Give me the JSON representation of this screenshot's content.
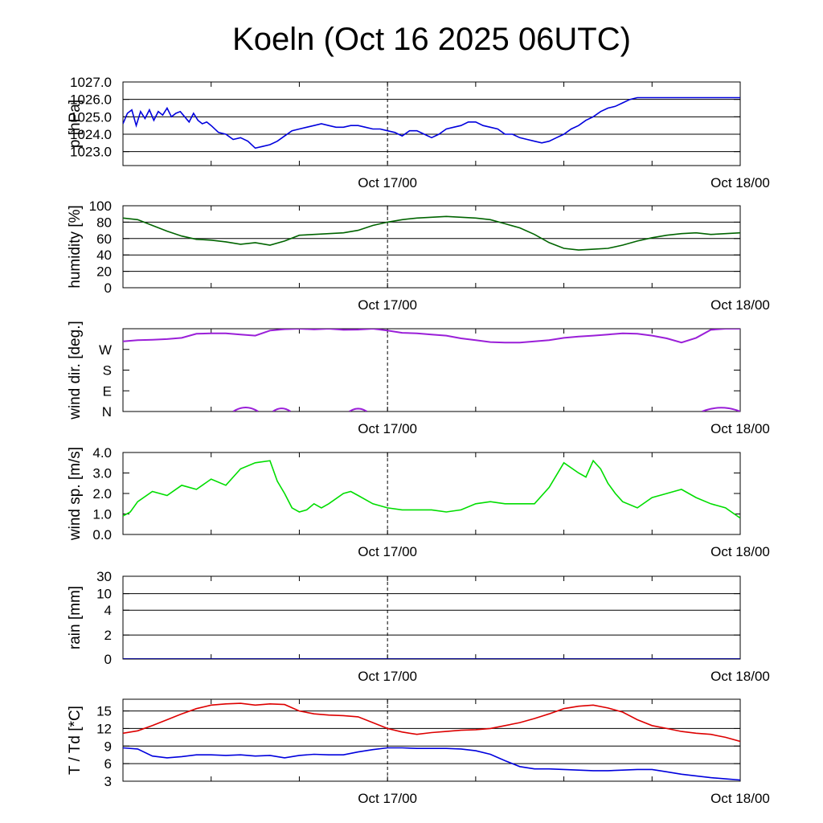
{
  "title": "Koeln (Oct 16 2025 06UTC)",
  "x_tick_labels": [
    "Oct 17/00",
    "Oct 18/00"
  ],
  "chart_data": [
    {
      "id": "pressure",
      "type": "line",
      "ylabel": "p [hPa]",
      "ylim": [
        1022.2,
        1027.0
      ],
      "yticks": [
        1023.0,
        1024.0,
        1025.0,
        1026.0,
        1027.0
      ],
      "ytick_labels": [
        "1023.0",
        "1024.0",
        "1025.0",
        "1026.0",
        "1027.0"
      ],
      "grid": true,
      "xlim_hours": [
        0,
        42
      ],
      "series": [
        {
          "name": "p",
          "color": "#0000dd",
          "x": [
            0,
            0.3,
            0.6,
            0.9,
            1.2,
            1.5,
            1.8,
            2.1,
            2.4,
            2.7,
            3.0,
            3.3,
            3.6,
            3.9,
            4.2,
            4.5,
            4.8,
            5.1,
            5.4,
            5.7,
            6.0,
            6.5,
            7.0,
            7.5,
            8.0,
            8.5,
            9.0,
            9.5,
            10.0,
            10.5,
            11.0,
            11.5,
            12.0,
            12.5,
            13.0,
            13.5,
            14.0,
            14.5,
            15.0,
            15.5,
            16.0,
            16.5,
            17.0,
            17.5,
            18.0,
            18.5,
            19.0,
            19.5,
            20.0,
            20.5,
            21.0,
            21.5,
            22.0,
            22.5,
            23.0,
            23.5,
            24.0,
            24.5,
            25.0,
            25.5,
            26.0,
            26.5,
            27.0,
            27.5,
            28.0,
            28.5,
            29.0,
            29.5,
            30.0,
            30.5,
            31.0,
            31.5,
            32.0,
            32.5,
            33.0,
            33.5,
            34.0,
            34.5,
            35.0,
            35.5,
            36.0,
            36.5,
            37.0,
            37.5,
            38.0,
            38.5,
            39.0,
            39.5,
            40.0,
            40.5,
            41.0,
            41.5,
            42.0
          ],
          "y": [
            1024.6,
            1025.2,
            1025.4,
            1024.5,
            1025.3,
            1024.9,
            1025.4,
            1024.8,
            1025.3,
            1025.1,
            1025.5,
            1025.0,
            1025.2,
            1025.3,
            1025.0,
            1024.7,
            1025.2,
            1024.8,
            1024.6,
            1024.7,
            1024.5,
            1024.1,
            1024.0,
            1023.7,
            1023.8,
            1023.6,
            1023.2,
            1023.3,
            1023.4,
            1023.6,
            1023.9,
            1024.2,
            1024.3,
            1024.4,
            1024.5,
            1024.6,
            1024.5,
            1024.4,
            1024.4,
            1024.5,
            1024.5,
            1024.4,
            1024.3,
            1024.3,
            1024.2,
            1024.1,
            1023.9,
            1024.2,
            1024.2,
            1024.0,
            1023.8,
            1024.0,
            1024.3,
            1024.4,
            1024.5,
            1024.7,
            1024.7,
            1024.5,
            1024.4,
            1024.3,
            1024.0,
            1024.0,
            1023.8,
            1023.7,
            1023.6,
            1023.5,
            1023.6,
            1023.8,
            1024.0,
            1024.3,
            1024.5,
            1024.8,
            1025.0,
            1025.3,
            1025.5,
            1025.6,
            1025.8,
            1026.0,
            1026.1,
            1026.1,
            1026.1,
            1026.1,
            1026.1,
            1026.1,
            1026.1,
            1026.1,
            1026.1,
            1026.1,
            1026.1,
            1026.1,
            1026.1,
            1026.1,
            1026.1
          ]
        }
      ]
    },
    {
      "id": "humidity",
      "type": "line",
      "ylabel": "humidity [%]",
      "ylim": [
        0,
        100
      ],
      "yticks": [
        0,
        20,
        40,
        60,
        80,
        100
      ],
      "ytick_labels": [
        "0",
        "20",
        "40",
        "60",
        "80",
        "100"
      ],
      "grid": true,
      "xlim_hours": [
        0,
        42
      ],
      "series": [
        {
          "name": "humidity",
          "color": "#006400",
          "x": [
            0,
            1,
            2,
            3,
            4,
            5,
            6,
            7,
            8,
            9,
            10,
            11,
            12,
            13,
            14,
            15,
            16,
            17,
            18,
            19,
            20,
            21,
            22,
            23,
            24,
            25,
            26,
            27,
            28,
            29,
            30,
            31,
            32,
            33,
            34,
            35,
            36,
            37,
            38,
            39,
            40,
            41,
            42
          ],
          "y": [
            85,
            83,
            76,
            69,
            63,
            59,
            58,
            56,
            53,
            55,
            52,
            57,
            64,
            65,
            66,
            67,
            70,
            76,
            80,
            83,
            85,
            86,
            87,
            86,
            85,
            83,
            78,
            73,
            65,
            55,
            48,
            46,
            47,
            48,
            52,
            57,
            61,
            64,
            66,
            67,
            65,
            66,
            67
          ]
        }
      ]
    },
    {
      "id": "wind_dir",
      "type": "line",
      "ylabel": "wind dir. [deg.]",
      "ylim": [
        0,
        360
      ],
      "yticks": [
        0,
        90,
        180,
        270
      ],
      "ytick_labels": [
        "N",
        "E",
        "S",
        "W"
      ],
      "grid": false,
      "xlim_hours": [
        0,
        42
      ],
      "series": [
        {
          "name": "wind direction",
          "color": "#9a1fd8",
          "x": [
            0,
            1,
            2,
            3,
            4,
            5,
            6,
            7,
            8,
            9,
            10,
            11,
            12,
            13,
            14,
            15,
            16,
            17,
            18,
            19,
            20,
            21,
            22,
            23,
            24,
            25,
            26,
            27,
            28,
            29,
            30,
            31,
            32,
            33,
            34,
            35,
            36,
            37,
            38,
            39,
            40,
            41,
            42
          ],
          "y": [
            305,
            310,
            312,
            315,
            320,
            338,
            340,
            340,
            335,
            330,
            352,
            358,
            360,
            357,
            360,
            355,
            356,
            360,
            352,
            342,
            340,
            335,
            330,
            318,
            310,
            302,
            300,
            300,
            305,
            310,
            320,
            326,
            330,
            335,
            340,
            338,
            330,
            318,
            300,
            320,
            355,
            360,
            360
          ]
        }
      ]
    },
    {
      "id": "wind_speed",
      "type": "line",
      "ylabel": "wind sp. [m/s]",
      "ylim": [
        0,
        4.0
      ],
      "yticks": [
        0,
        1,
        2,
        3,
        4
      ],
      "ytick_labels": [
        "0.0",
        "1.0",
        "2.0",
        "3.0",
        "4.0"
      ],
      "grid": false,
      "xlim_hours": [
        0,
        42
      ],
      "series": [
        {
          "name": "wind speed",
          "color": "#00dd00",
          "x": [
            0,
            0.5,
            1,
            2,
            3,
            4,
            5,
            6,
            7,
            8,
            9,
            10,
            10.5,
            11,
            11.5,
            12,
            12.5,
            13,
            13.5,
            14,
            15,
            15.5,
            16,
            17,
            18,
            19,
            20,
            21,
            22,
            23,
            24,
            25,
            26,
            27,
            28,
            29,
            30,
            31,
            31.5,
            32,
            32.5,
            33,
            33.5,
            34,
            35,
            36,
            37,
            38,
            39,
            40,
            41,
            42
          ],
          "y": [
            0.9,
            1.1,
            1.6,
            2.1,
            1.9,
            2.4,
            2.2,
            2.7,
            2.4,
            3.2,
            3.5,
            3.6,
            2.6,
            2.0,
            1.3,
            1.1,
            1.2,
            1.5,
            1.3,
            1.5,
            2.0,
            2.1,
            1.9,
            1.5,
            1.3,
            1.2,
            1.2,
            1.2,
            1.1,
            1.2,
            1.5,
            1.6,
            1.5,
            1.5,
            1.5,
            2.3,
            3.5,
            3.0,
            2.8,
            3.6,
            3.2,
            2.5,
            2.0,
            1.6,
            1.3,
            1.8,
            2.0,
            2.2,
            1.8,
            1.5,
            1.3,
            0.8
          ]
        }
      ]
    },
    {
      "id": "rain",
      "type": "line",
      "ylabel": "rain [mm]",
      "ylim": [
        0,
        30
      ],
      "yticks": [
        0,
        2,
        4,
        10,
        30
      ],
      "ytick_labels": [
        "0",
        "2",
        "4",
        "10",
        "30"
      ],
      "grid": true,
      "xlim_hours": [
        0,
        42
      ],
      "series": [
        {
          "name": "rain",
          "color": "#00008b",
          "x": [
            0,
            42
          ],
          "y": [
            0,
            0
          ]
        }
      ]
    },
    {
      "id": "temperature",
      "type": "line",
      "ylabel": "T / Td [*C]",
      "ylim": [
        3,
        17
      ],
      "yticks": [
        3,
        6,
        9,
        12,
        15
      ],
      "ytick_labels": [
        "3",
        "6",
        "9",
        "12",
        "15"
      ],
      "grid": true,
      "xlim_hours": [
        0,
        42
      ],
      "series": [
        {
          "name": "T",
          "color": "#dd0000",
          "x": [
            0,
            1,
            2,
            3,
            4,
            5,
            6,
            7,
            8,
            9,
            10,
            11,
            12,
            13,
            14,
            15,
            16,
            17,
            18,
            19,
            20,
            21,
            22,
            23,
            24,
            25,
            26,
            27,
            28,
            29,
            30,
            31,
            32,
            33,
            34,
            35,
            36,
            37,
            38,
            39,
            40,
            41,
            42
          ],
          "y": [
            11.2,
            11.6,
            12.5,
            13.5,
            14.5,
            15.4,
            16.0,
            16.2,
            16.3,
            16.0,
            16.2,
            16.1,
            15.0,
            14.5,
            14.3,
            14.2,
            14.0,
            13.0,
            12.0,
            11.4,
            11.0,
            11.3,
            11.5,
            11.7,
            11.8,
            12.0,
            12.5,
            13.0,
            13.7,
            14.5,
            15.4,
            15.8,
            16.0,
            15.5,
            14.8,
            13.5,
            12.5,
            12.0,
            11.5,
            11.2,
            11.0,
            10.5,
            9.8
          ]
        },
        {
          "name": "Td",
          "color": "#0000dd",
          "x": [
            0,
            1,
            2,
            3,
            4,
            5,
            6,
            7,
            8,
            9,
            10,
            11,
            12,
            13,
            14,
            15,
            16,
            17,
            18,
            19,
            20,
            21,
            22,
            23,
            24,
            25,
            26,
            27,
            28,
            29,
            30,
            31,
            32,
            33,
            34,
            35,
            36,
            37,
            38,
            39,
            40,
            41,
            42
          ],
          "y": [
            8.7,
            8.5,
            7.3,
            7.0,
            7.2,
            7.5,
            7.5,
            7.4,
            7.5,
            7.3,
            7.4,
            7.0,
            7.4,
            7.6,
            7.5,
            7.5,
            8.0,
            8.4,
            8.7,
            8.7,
            8.6,
            8.6,
            8.6,
            8.5,
            8.2,
            7.6,
            6.5,
            5.5,
            5.1,
            5.1,
            5.0,
            4.9,
            4.8,
            4.8,
            4.9,
            5.0,
            5.0,
            4.6,
            4.2,
            3.9,
            3.6,
            3.4,
            3.2
          ]
        }
      ]
    }
  ]
}
